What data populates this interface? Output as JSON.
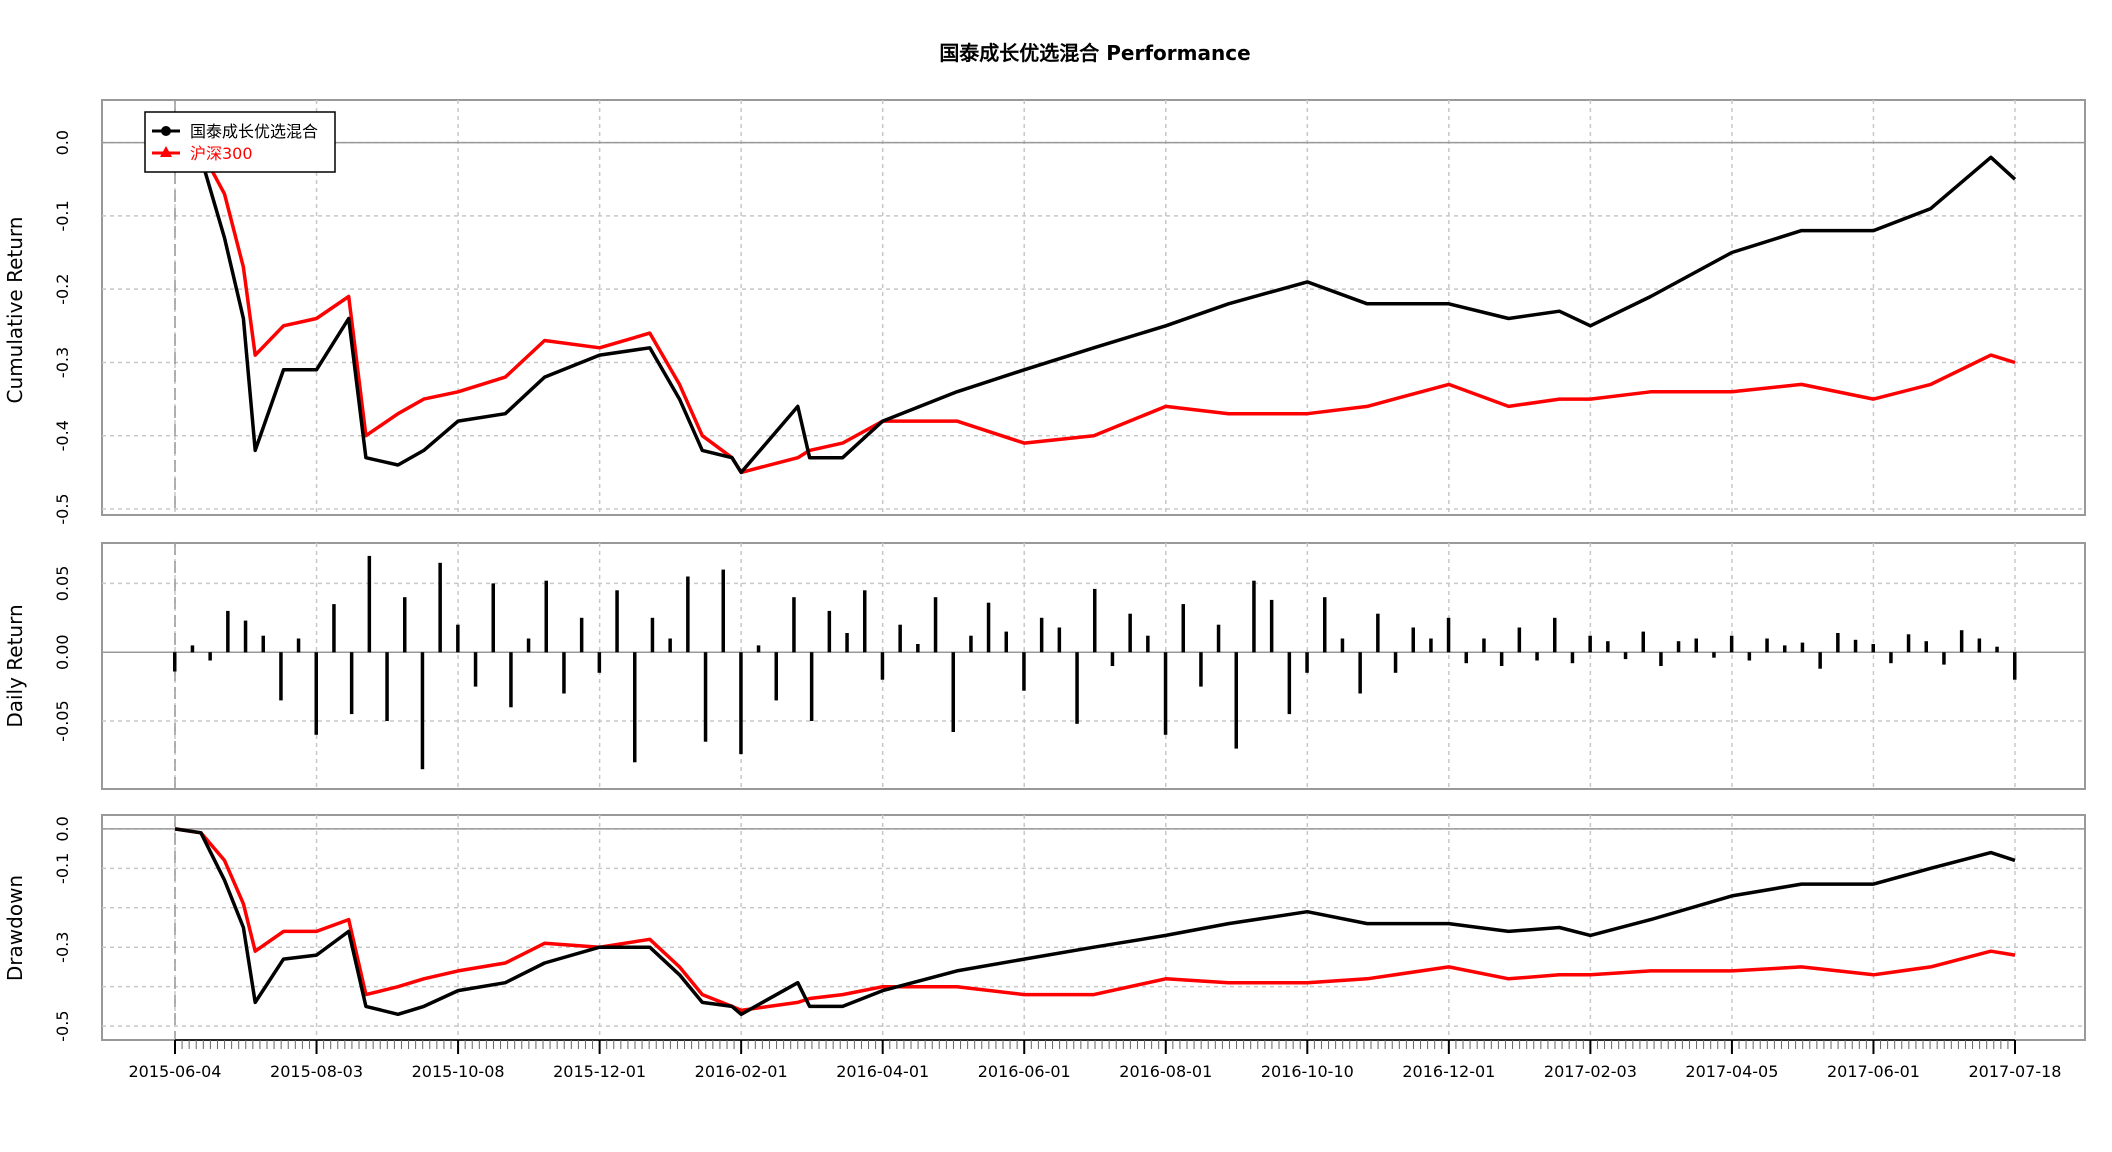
{
  "title": "国泰成长优选混合 Performance",
  "colors": {
    "fund": "#000000",
    "benchmark": "#ff0000",
    "grid": "#c8c8c8",
    "frame": "#999999"
  },
  "legend": {
    "placement": "top-left",
    "items": [
      "国泰成长优选混合",
      "沪深300"
    ]
  },
  "panels": {
    "cumulative": {
      "ylabel": "Cumulative Return",
      "ylim": [
        -0.5,
        0.05
      ],
      "yticks": [
        "0.0",
        "-0.1",
        "-0.2",
        "-0.3",
        "-0.4",
        "-0.5"
      ]
    },
    "daily": {
      "ylabel": "Daily Return",
      "ylim": [
        -0.095,
        0.075
      ],
      "yticks": [
        "0.05",
        "0.00",
        "-0.05"
      ]
    },
    "drawdown": {
      "ylabel": "Drawdown",
      "ylim": [
        -0.52,
        0.02
      ],
      "yticks": [
        "0.0",
        "-0.1",
        "-0.3",
        "-0.5"
      ]
    }
  },
  "x_tick_labels": [
    "2015-06-04",
    "2015-08-03",
    "2015-10-08",
    "2015-12-01",
    "2016-02-01",
    "2016-04-01",
    "2016-06-01",
    "2016-08-01",
    "2016-10-10",
    "2016-12-01",
    "2017-02-03",
    "2017-04-05",
    "2017-06-01",
    "2017-07-18"
  ],
  "chart_data": [
    {
      "type": "line",
      "title": "国泰成长优选混合 Performance",
      "ylabel": "Cumulative Return",
      "ylim": [
        -0.5,
        0.05
      ],
      "x": [
        "2015-06-04",
        "2015-06-15",
        "2015-06-25",
        "2015-07-03",
        "2015-07-08",
        "2015-07-20",
        "2015-08-03",
        "2015-08-18",
        "2015-08-26",
        "2015-09-10",
        "2015-09-22",
        "2015-10-08",
        "2015-10-26",
        "2015-11-10",
        "2015-12-01",
        "2015-12-23",
        "2016-01-05",
        "2016-01-15",
        "2016-01-28",
        "2016-02-01",
        "2016-02-25",
        "2016-03-01",
        "2016-03-15",
        "2016-04-01",
        "2016-05-03",
        "2016-06-01",
        "2016-07-01",
        "2016-08-01",
        "2016-09-01",
        "2016-10-10",
        "2016-11-01",
        "2016-12-01",
        "2016-12-28",
        "2017-01-20",
        "2017-02-03",
        "2017-03-01",
        "2017-04-05",
        "2017-05-03",
        "2017-06-01",
        "2017-06-20",
        "2017-07-10",
        "2017-07-18"
      ],
      "series": [
        {
          "name": "国泰成长优选混合",
          "color": "#000000",
          "values": [
            0.0,
            -0.02,
            -0.13,
            -0.24,
            -0.42,
            -0.31,
            -0.31,
            -0.24,
            -0.43,
            -0.44,
            -0.42,
            -0.38,
            -0.37,
            -0.32,
            -0.29,
            -0.28,
            -0.35,
            -0.42,
            -0.43,
            -0.45,
            -0.36,
            -0.43,
            -0.43,
            -0.38,
            -0.34,
            -0.31,
            -0.28,
            -0.25,
            -0.22,
            -0.19,
            -0.22,
            -0.22,
            -0.24,
            -0.23,
            -0.25,
            -0.21,
            -0.15,
            -0.12,
            -0.12,
            -0.09,
            -0.02,
            -0.05
          ]
        },
        {
          "name": "沪深300",
          "color": "#ff0000",
          "values": [
            0.0,
            -0.01,
            -0.07,
            -0.17,
            -0.29,
            -0.25,
            -0.24,
            -0.21,
            -0.4,
            -0.37,
            -0.35,
            -0.34,
            -0.32,
            -0.27,
            -0.28,
            -0.26,
            -0.33,
            -0.4,
            -0.43,
            -0.45,
            -0.43,
            -0.42,
            -0.41,
            -0.38,
            -0.38,
            -0.41,
            -0.4,
            -0.36,
            -0.37,
            -0.37,
            -0.36,
            -0.33,
            -0.36,
            -0.35,
            -0.35,
            -0.34,
            -0.34,
            -0.33,
            -0.35,
            -0.33,
            -0.29,
            -0.3
          ]
        }
      ]
    },
    {
      "type": "bar",
      "ylabel": "Daily Return",
      "ylim": [
        -0.095,
        0.075
      ],
      "series": [
        {
          "name": "国泰成长优选混合",
          "values": [
            -0.014,
            0.005,
            -0.006,
            0.03,
            0.023,
            0.012,
            -0.035,
            0.01,
            -0.06,
            0.035,
            -0.045,
            0.07,
            -0.05,
            0.04,
            -0.085,
            0.065,
            0.02,
            -0.025,
            0.05,
            -0.04,
            0.01,
            0.052,
            -0.03,
            0.025,
            -0.015,
            0.045,
            -0.08,
            0.025,
            0.01,
            0.055,
            -0.065,
            0.06,
            -0.074,
            0.005,
            -0.035,
            0.04,
            -0.05,
            0.03,
            0.014,
            0.045,
            -0.02,
            0.02,
            0.006,
            0.04,
            -0.058,
            0.012,
            0.036,
            0.015,
            -0.028,
            0.025,
            0.018,
            -0.052,
            0.046,
            -0.01,
            0.028,
            0.012,
            -0.06,
            0.035,
            -0.025,
            0.02,
            -0.07,
            0.052,
            0.038,
            -0.045,
            -0.015,
            0.04,
            0.01,
            -0.03,
            0.028,
            -0.015,
            0.018,
            0.01,
            0.025,
            -0.008,
            0.01,
            -0.01,
            0.018,
            -0.006,
            0.025,
            -0.008,
            0.012,
            0.008,
            -0.005,
            0.015,
            -0.01,
            0.008,
            0.01,
            -0.004,
            0.012,
            -0.006,
            0.01,
            0.005,
            0.007,
            -0.012,
            0.014,
            0.009,
            0.006,
            -0.008,
            0.013,
            0.008,
            -0.009,
            0.016,
            0.01,
            0.004,
            -0.02
          ]
        },
        {
          "name": "沪深300",
          "values": []
        }
      ]
    },
    {
      "type": "line",
      "ylabel": "Drawdown",
      "ylim": [
        -0.52,
        0.02
      ],
      "x": [
        "2015-06-04",
        "2015-06-15",
        "2015-06-25",
        "2015-07-03",
        "2015-07-08",
        "2015-07-20",
        "2015-08-03",
        "2015-08-18",
        "2015-08-26",
        "2015-09-10",
        "2015-09-22",
        "2015-10-08",
        "2015-10-26",
        "2015-11-10",
        "2015-12-01",
        "2015-12-23",
        "2016-01-05",
        "2016-01-15",
        "2016-01-28",
        "2016-02-01",
        "2016-02-25",
        "2016-03-01",
        "2016-03-15",
        "2016-04-01",
        "2016-05-03",
        "2016-06-01",
        "2016-07-01",
        "2016-08-01",
        "2016-09-01",
        "2016-10-10",
        "2016-11-01",
        "2016-12-01",
        "2016-12-28",
        "2017-01-20",
        "2017-02-03",
        "2017-03-01",
        "2017-04-05",
        "2017-05-03",
        "2017-06-01",
        "2017-06-20",
        "2017-07-10",
        "2017-07-18"
      ],
      "series": [
        {
          "name": "国泰成长优选混合",
          "color": "#000000",
          "values": [
            0.0,
            -0.01,
            -0.13,
            -0.25,
            -0.44,
            -0.33,
            -0.32,
            -0.26,
            -0.45,
            -0.47,
            -0.45,
            -0.41,
            -0.39,
            -0.34,
            -0.3,
            -0.3,
            -0.37,
            -0.44,
            -0.45,
            -0.47,
            -0.39,
            -0.45,
            -0.45,
            -0.41,
            -0.36,
            -0.33,
            -0.3,
            -0.27,
            -0.24,
            -0.21,
            -0.24,
            -0.24,
            -0.26,
            -0.25,
            -0.27,
            -0.23,
            -0.17,
            -0.14,
            -0.14,
            -0.1,
            -0.06,
            -0.08
          ]
        },
        {
          "name": "沪深300",
          "color": "#ff0000",
          "values": [
            0.0,
            -0.01,
            -0.08,
            -0.19,
            -0.31,
            -0.26,
            -0.26,
            -0.23,
            -0.42,
            -0.4,
            -0.38,
            -0.36,
            -0.34,
            -0.29,
            -0.3,
            -0.28,
            -0.35,
            -0.42,
            -0.45,
            -0.46,
            -0.44,
            -0.43,
            -0.42,
            -0.4,
            -0.4,
            -0.42,
            -0.42,
            -0.38,
            -0.39,
            -0.39,
            -0.38,
            -0.35,
            -0.38,
            -0.37,
            -0.37,
            -0.36,
            -0.36,
            -0.35,
            -0.37,
            -0.35,
            -0.31,
            -0.32
          ]
        }
      ]
    }
  ]
}
